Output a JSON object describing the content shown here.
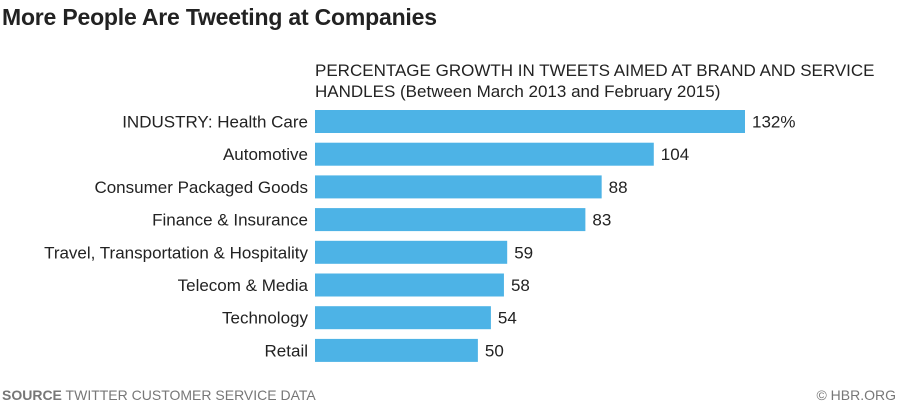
{
  "chart_data": {
    "type": "bar",
    "orientation": "horizontal",
    "title": "More People Are Tweeting at Companies",
    "subtitle": [
      "PERCENTAGE GROWTH IN TWEETS AIMED AT BRAND AND SERVICE",
      "HANDLES (Between March 2013 and February 2015)"
    ],
    "categories": [
      "INDUSTRY: Health Care",
      "Automotive",
      "Consumer Packaged Goods",
      "Finance & Insurance",
      "Travel, Transportation & Hospitality",
      "Telecom & Media",
      "Technology",
      "Retail"
    ],
    "values": [
      132,
      104,
      88,
      83,
      59,
      58,
      54,
      50
    ],
    "data_labels": [
      "132%",
      "104",
      "88",
      "83",
      "59",
      "58",
      "54",
      "50"
    ],
    "xlim": [
      0,
      132
    ],
    "grid": false,
    "bar_color": "#4db3e6"
  },
  "footer": {
    "source_label": "SOURCE",
    "source_text": "TWITTER CUSTOMER SERVICE DATA",
    "credit": "© HBR.ORG"
  }
}
